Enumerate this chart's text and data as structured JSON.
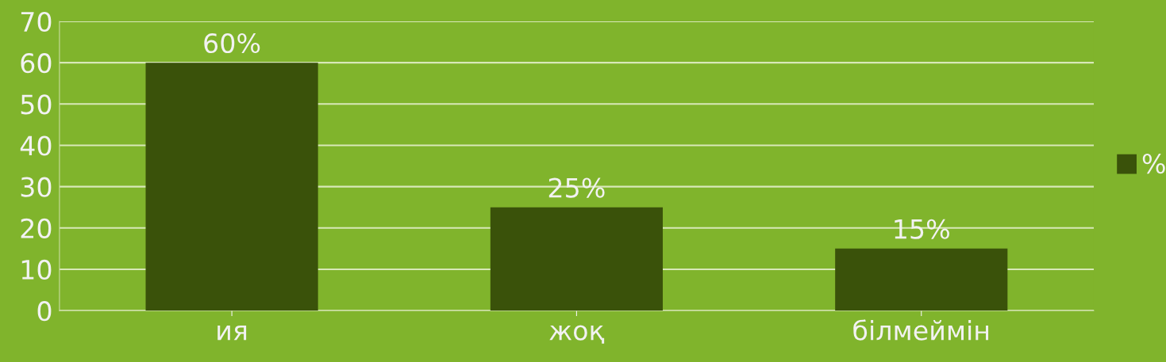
{
  "chart_data": {
    "type": "bar",
    "categories": [
      "ия",
      "жоқ",
      "білмеймін"
    ],
    "series": [
      {
        "name": "%",
        "color": "#3a520a",
        "values": [
          60,
          25,
          15
        ],
        "value_labels": [
          "60%",
          "25%",
          "15%"
        ]
      }
    ],
    "ylim": [
      0,
      70
    ],
    "yticks": [
      0,
      10,
      20,
      30,
      40,
      50,
      60,
      70
    ],
    "grid": "y",
    "legend": "right"
  }
}
